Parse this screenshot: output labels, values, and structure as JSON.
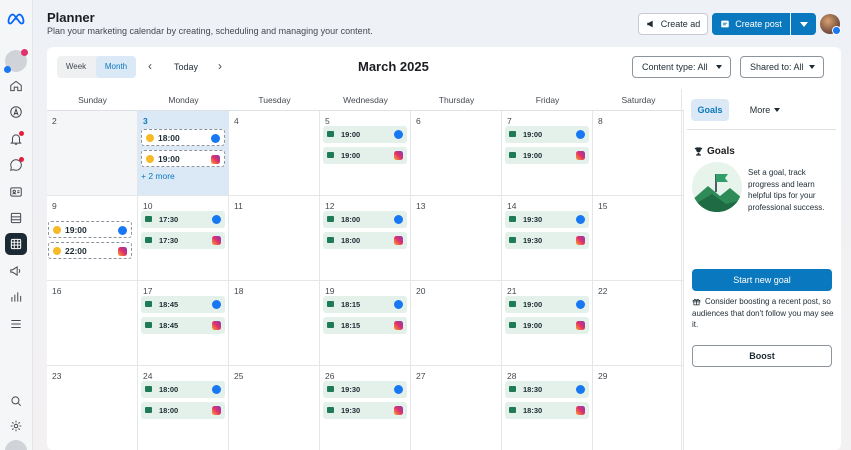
{
  "header": {
    "title": "Planner",
    "subtitle": "Plan your marketing calendar by creating, scheduling and managing your content.",
    "create_ad": "Create ad",
    "create_post": "Create post"
  },
  "toolbar": {
    "week": "Week",
    "month": "Month",
    "today": "Today",
    "current_month": "March 2025",
    "content_type": "Content type: All",
    "shared_to": "Shared to: All"
  },
  "weekdays": [
    "Sunday",
    "Monday",
    "Tuesday",
    "Wednesday",
    "Thursday",
    "Friday",
    "Saturday"
  ],
  "weeks": [
    {
      "days": [
        {
          "n": "2",
          "past": true
        },
        {
          "n": "3",
          "today": true,
          "posts": [
            {
              "t": "18:00",
              "net": "facebook",
              "draft": true
            },
            {
              "t": "19:00",
              "net": "instagram",
              "draft": true
            }
          ],
          "more": "+ 2 more"
        },
        {
          "n": "4"
        },
        {
          "n": "5",
          "posts": [
            {
              "t": "19:00",
              "net": "facebook"
            },
            {
              "t": "19:00",
              "net": "instagram"
            }
          ]
        },
        {
          "n": "6"
        },
        {
          "n": "7",
          "posts": [
            {
              "t": "19:00",
              "net": "facebook"
            },
            {
              "t": "19:00",
              "net": "instagram"
            }
          ]
        },
        {
          "n": "8"
        }
      ]
    },
    {
      "days": [
        {
          "n": "9",
          "posts": [
            {
              "t": "19:00",
              "net": "facebook",
              "draft": true
            },
            {
              "t": "22:00",
              "net": "instagram",
              "draft": true
            }
          ]
        },
        {
          "n": "10",
          "posts": [
            {
              "t": "17:30",
              "net": "facebook"
            },
            {
              "t": "17:30",
              "net": "instagram"
            }
          ]
        },
        {
          "n": "11"
        },
        {
          "n": "12",
          "posts": [
            {
              "t": "18:00",
              "net": "facebook"
            },
            {
              "t": "18:00",
              "net": "instagram"
            }
          ]
        },
        {
          "n": "13"
        },
        {
          "n": "14",
          "posts": [
            {
              "t": "19:30",
              "net": "facebook"
            },
            {
              "t": "19:30",
              "net": "instagram"
            }
          ]
        },
        {
          "n": "15"
        }
      ]
    },
    {
      "days": [
        {
          "n": "16"
        },
        {
          "n": "17",
          "posts": [
            {
              "t": "18:45",
              "net": "facebook"
            },
            {
              "t": "18:45",
              "net": "instagram"
            }
          ]
        },
        {
          "n": "18"
        },
        {
          "n": "19",
          "posts": [
            {
              "t": "18:15",
              "net": "facebook"
            },
            {
              "t": "18:15",
              "net": "instagram"
            }
          ]
        },
        {
          "n": "20"
        },
        {
          "n": "21",
          "posts": [
            {
              "t": "19:00",
              "net": "facebook"
            },
            {
              "t": "19:00",
              "net": "instagram"
            }
          ]
        },
        {
          "n": "22"
        }
      ]
    },
    {
      "days": [
        {
          "n": "23"
        },
        {
          "n": "24",
          "posts": [
            {
              "t": "18:00",
              "net": "facebook"
            },
            {
              "t": "18:00",
              "net": "instagram"
            }
          ]
        },
        {
          "n": "25"
        },
        {
          "n": "26",
          "posts": [
            {
              "t": "19:30",
              "net": "facebook"
            },
            {
              "t": "19:30",
              "net": "instagram"
            }
          ]
        },
        {
          "n": "27"
        },
        {
          "n": "28",
          "posts": [
            {
              "t": "18:30",
              "net": "facebook"
            },
            {
              "t": "18:30",
              "net": "instagram"
            }
          ]
        },
        {
          "n": "29"
        }
      ]
    }
  ],
  "panel": {
    "tab_goals": "Goals",
    "tab_more": "More",
    "goals_heading": "Goals",
    "goals_text": "Set a goal, track progress and learn helpful tips for your professional success.",
    "start_goal": "Start new goal",
    "boost_text": "Consider boosting a recent post, so audiences that don't follow you may see it.",
    "boost": "Boost"
  },
  "colors": {
    "accent": "#0a78be",
    "today_bg": "#dbe9f7",
    "post_bg": "#e3f1ea",
    "facebook": "#1877f2"
  }
}
